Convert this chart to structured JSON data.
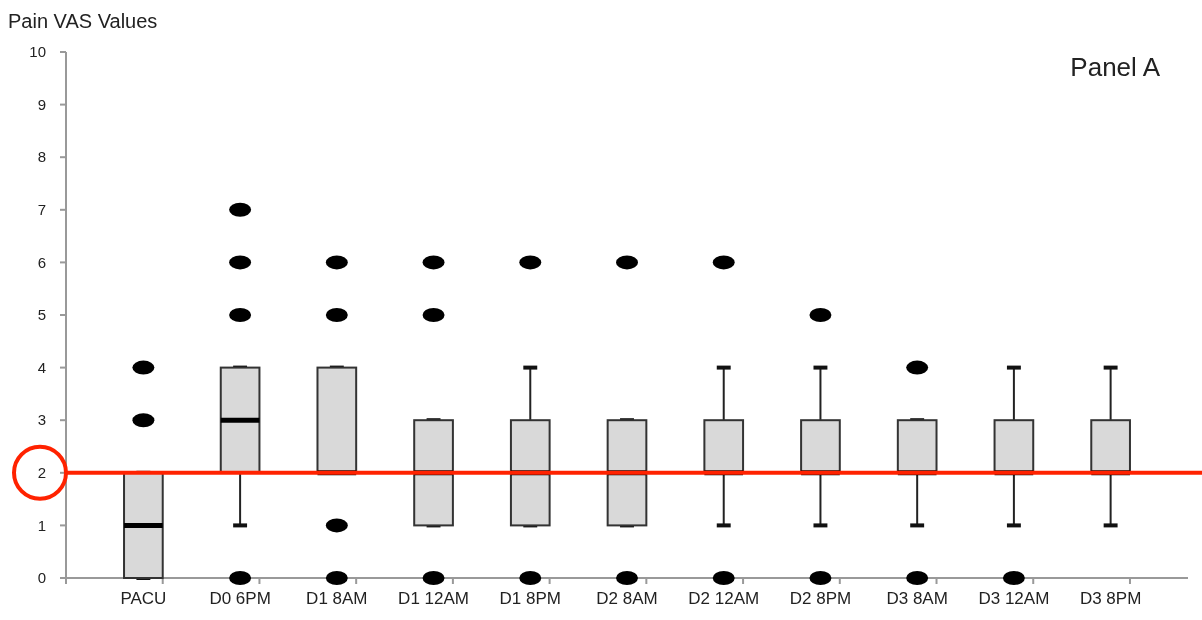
{
  "chart_data": {
    "type": "box",
    "ylabel": "Pain VAS Values",
    "annotations": [
      "Panel A"
    ],
    "categories": [
      "PACU",
      "D0 6PM",
      "D1 8AM",
      "D1 12AM",
      "D1 8PM",
      "D2 8AM",
      "D2 12AM",
      "D2 8PM",
      "D3 8AM",
      "D3 12AM",
      "D3 8PM"
    ],
    "boxes": [
      {
        "low": 0,
        "q1": 0,
        "median": 1,
        "q3": 2,
        "high": 2,
        "outliers": [
          3,
          4
        ]
      },
      {
        "low": 1,
        "q1": 2,
        "median": 3,
        "q3": 4,
        "high": 4,
        "outliers": [
          0,
          5,
          6,
          7
        ]
      },
      {
        "low": 2,
        "q1": 2,
        "median": 2,
        "q3": 4,
        "high": 4,
        "outliers": [
          0,
          1,
          5,
          6
        ]
      },
      {
        "low": 1,
        "q1": 1,
        "median": 2,
        "q3": 3,
        "high": 3,
        "outliers": [
          0,
          5,
          6
        ]
      },
      {
        "low": 1,
        "q1": 1,
        "median": 2,
        "q3": 3,
        "high": 4,
        "outliers": [
          0,
          6
        ]
      },
      {
        "low": 1,
        "q1": 1,
        "median": 2,
        "q3": 3,
        "high": 3,
        "outliers": [
          0,
          6
        ]
      },
      {
        "low": 1,
        "q1": 2,
        "median": 2,
        "q3": 3,
        "high": 4,
        "outliers": [
          0,
          6
        ]
      },
      {
        "low": 1,
        "q1": 2,
        "median": 2,
        "q3": 3,
        "high": 4,
        "outliers": [
          0,
          5
        ]
      },
      {
        "low": 1,
        "q1": 2,
        "median": 2,
        "q3": 3,
        "high": 3,
        "outliers": [
          0,
          4
        ]
      },
      {
        "low": 1,
        "q1": 2,
        "median": 2,
        "q3": 3,
        "high": 4,
        "outliers": [
          0
        ]
      },
      {
        "low": 1,
        "q1": 2,
        "median": 2,
        "q3": 3,
        "high": 4
      }
    ],
    "color": "#d9d9d9",
    "ylim": [
      0,
      10
    ],
    "yticks": [
      0,
      1,
      2,
      3,
      4,
      5,
      6,
      7,
      8,
      9,
      10
    ],
    "ref_lines": [
      {
        "axis": "y",
        "value": 2,
        "color": "#ff2200"
      }
    ],
    "grid": false
  }
}
